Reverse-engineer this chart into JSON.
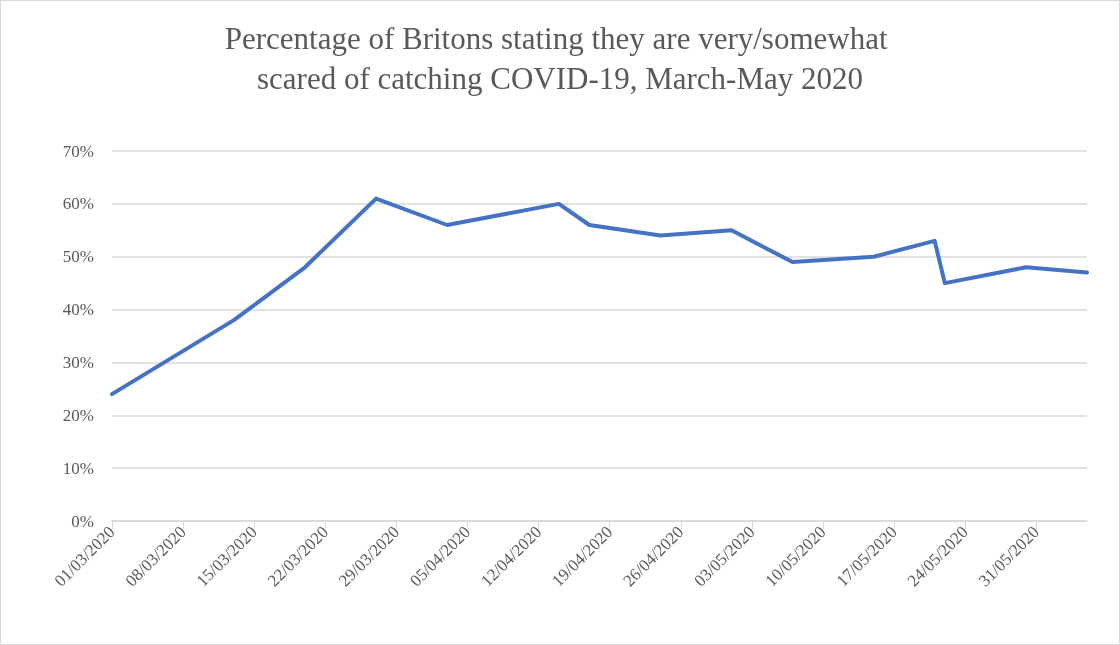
{
  "chart_data": {
    "type": "line",
    "title": "Percentage of Britons stating they are very/somewhat scared of catching COVID-19, March-May 2020",
    "x": [
      "2020-03-01",
      "2020-03-13",
      "2020-03-20",
      "2020-03-27",
      "2020-04-03",
      "2020-04-14",
      "2020-04-17",
      "2020-04-24",
      "2020-05-01",
      "2020-05-07",
      "2020-05-15",
      "2020-05-21",
      "2020-05-22",
      "2020-05-30",
      "2020-06-05"
    ],
    "series": [
      {
        "color": "#4472c4",
        "values": [
          24,
          38,
          48,
          61,
          56,
          60,
          56,
          54,
          55,
          49,
          50,
          53,
          45,
          48,
          47
        ]
      }
    ],
    "xlim": [
      "2020-03-01",
      "2020-06-05"
    ],
    "xticks": [
      {
        "value": "2020-03-01",
        "label": "01/03/2020"
      },
      {
        "value": "2020-03-08",
        "label": "08/03/2020"
      },
      {
        "value": "2020-03-15",
        "label": "15/03/2020"
      },
      {
        "value": "2020-03-22",
        "label": "22/03/2020"
      },
      {
        "value": "2020-03-29",
        "label": "29/03/2020"
      },
      {
        "value": "2020-04-05",
        "label": "05/04/2020"
      },
      {
        "value": "2020-04-12",
        "label": "12/04/2020"
      },
      {
        "value": "2020-04-19",
        "label": "19/04/2020"
      },
      {
        "value": "2020-04-26",
        "label": "26/04/2020"
      },
      {
        "value": "2020-05-03",
        "label": "03/05/2020"
      },
      {
        "value": "2020-05-10",
        "label": "10/05/2020"
      },
      {
        "value": "2020-05-17",
        "label": "17/05/2020"
      },
      {
        "value": "2020-05-24",
        "label": "24/05/2020"
      },
      {
        "value": "2020-05-31",
        "label": "31/05/2020"
      }
    ],
    "ylim": [
      0,
      70
    ],
    "yticks": [
      {
        "value": 0,
        "label": "0%"
      },
      {
        "value": 10,
        "label": "10%"
      },
      {
        "value": 20,
        "label": "20%"
      },
      {
        "value": 30,
        "label": "30%"
      },
      {
        "value": 40,
        "label": "40%"
      },
      {
        "value": 50,
        "label": "50%"
      },
      {
        "value": 60,
        "label": "60%"
      },
      {
        "value": 70,
        "label": "70%"
      }
    ],
    "grid": "y",
    "marker": "none",
    "line_style": "solid"
  }
}
